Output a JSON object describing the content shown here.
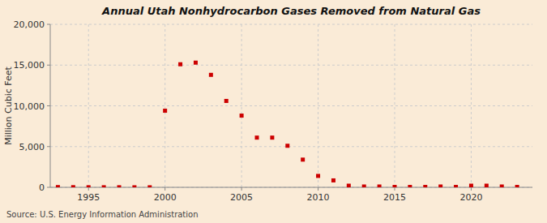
{
  "chart_data": {
    "type": "scatter",
    "title": "Annual Utah Nonhydrocarbon Gases Removed from Natural Gas",
    "ylabel": "Million Cubic Feet",
    "source": "Source: U.S. Energy Information Administration",
    "color": "#cc0000",
    "marker": "square",
    "grid": true,
    "xlim": [
      1992.5,
      2024
    ],
    "ylim": [
      0,
      20000
    ],
    "xticks": [
      1995,
      2000,
      2005,
      2010,
      2015,
      2020
    ],
    "yticks": [
      0,
      {
        "value": 5000,
        "label": "5,000"
      },
      {
        "value": 10000,
        "label": "10,000"
      },
      {
        "value": 15000,
        "label": "15,000"
      },
      {
        "value": 20000,
        "label": "20,000"
      }
    ],
    "x": [
      1993,
      1994,
      1995,
      1996,
      1997,
      1998,
      1999,
      2000,
      2001,
      2002,
      2003,
      2004,
      2005,
      2006,
      2007,
      2008,
      2009,
      2010,
      2011,
      2012,
      2013,
      2014,
      2015,
      2016,
      2017,
      2018,
      2019,
      2020,
      2021,
      2022,
      2023
    ],
    "values": [
      30,
      20,
      10,
      10,
      10,
      5,
      5,
      9400,
      15100,
      15300,
      13800,
      10600,
      8800,
      6100,
      6100,
      5100,
      3400,
      1400,
      850,
      200,
      100,
      100,
      50,
      50,
      50,
      100,
      50,
      200,
      200,
      100,
      50
    ]
  }
}
